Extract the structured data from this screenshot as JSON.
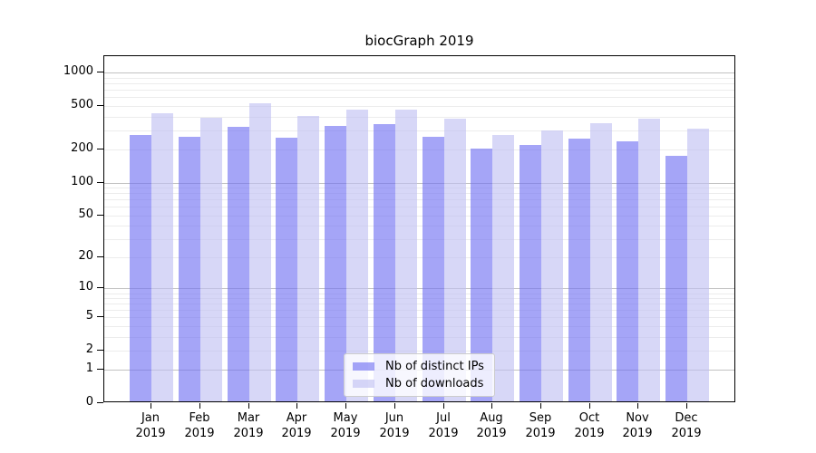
{
  "chart_data": {
    "type": "bar",
    "title": "biocGraph 2019",
    "categories": [
      "Jan",
      "Feb",
      "Mar",
      "Apr",
      "May",
      "Jun",
      "Jul",
      "Aug",
      "Sep",
      "Oct",
      "Nov",
      "Dec"
    ],
    "year": "2019",
    "series": [
      {
        "name": "Nb of distinct IPs",
        "color": "#6e6ef2",
        "values": [
          262,
          252,
          312,
          246,
          317,
          331,
          254,
          196,
          214,
          241,
          231,
          170
        ]
      },
      {
        "name": "Nb of downloads",
        "color": "#bebef2",
        "values": [
          416,
          376,
          512,
          388,
          449,
          446,
          366,
          262,
          289,
          337,
          369,
          297
        ]
      }
    ],
    "bar_opacity": 0.62,
    "xlabel": "",
    "ylabel": "",
    "yscale": "log10(1+x)",
    "ymax": 1420,
    "yticks": [
      0,
      1,
      2,
      5,
      10,
      20,
      50,
      100,
      200,
      500,
      1000
    ],
    "major_gridlines": [
      1,
      10,
      100,
      1000
    ],
    "minor_gridlines": [
      2,
      3,
      4,
      5,
      6,
      7,
      8,
      9,
      20,
      30,
      40,
      50,
      60,
      70,
      80,
      90,
      200,
      300,
      400,
      500,
      600,
      700,
      800,
      900
    ],
    "grid": true,
    "legend_position": "lower center-left",
    "colors": {
      "major_grid": "#c2c2c2",
      "minor_grid": "#ececec",
      "spine": "#000000",
      "text": "#000000",
      "background": "#ffffff"
    }
  }
}
